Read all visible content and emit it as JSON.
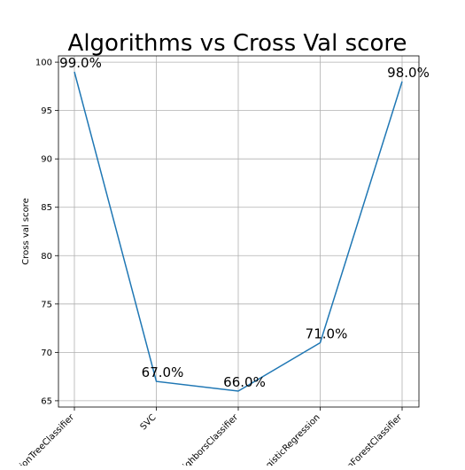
{
  "chart_data": {
    "type": "line",
    "title": "Algorithms vs Cross Val score",
    "xlabel": "",
    "ylabel": "Cross val score",
    "categories": [
      "DecisionTreeClassifier",
      "SVC",
      "KNeighborsClassifier",
      "LogisticRegression",
      "RandomForestClassifier"
    ],
    "series": [
      {
        "values": [
          99.0,
          67.0,
          66.0,
          71.0,
          98.0
        ]
      }
    ],
    "data_labels": [
      "99.0%",
      "67.0%",
      "66.0%",
      "71.0%",
      "98.0%"
    ],
    "yticks": [
      65,
      70,
      75,
      80,
      85,
      90,
      95,
      100
    ],
    "ylim": [
      64.35,
      100.65
    ],
    "grid": true,
    "line_color": "#1f77b4"
  }
}
